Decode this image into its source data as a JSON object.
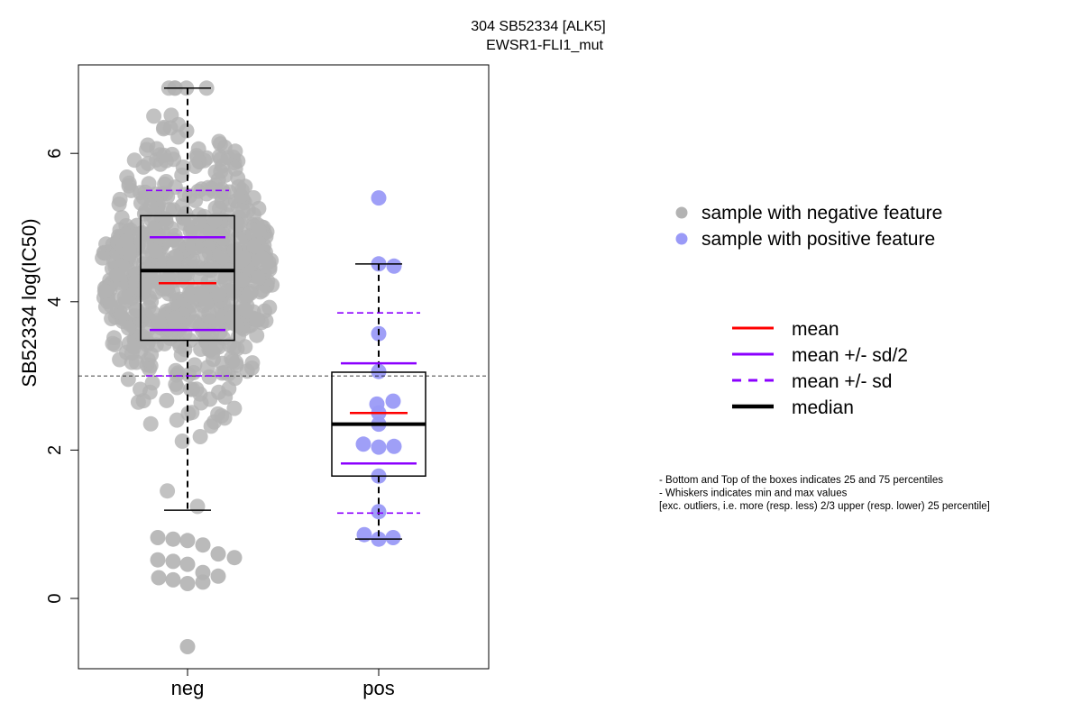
{
  "chart_data": {
    "type": "scatter",
    "title_line1": "304 SB52334 [ALK5]",
    "title_line2": "EWSR1-FLI1_mut",
    "ylabel": "SB52334 log(IC50)",
    "ylim": [
      -0.93,
      7.18
    ],
    "yticks": [
      "0",
      "2",
      "4",
      "6"
    ],
    "categories": [
      "neg",
      "pos"
    ],
    "reference_line_y": 3.0,
    "colors": {
      "neg_points": "#b3b3b3",
      "pos_points": "#9a9af7",
      "mean": "#ff0000",
      "sd": "#8b00ff",
      "median": "#000000"
    },
    "groups": [
      {
        "name": "neg",
        "n_points": 700,
        "whisker_min": 1.19,
        "q1": 3.48,
        "median": 4.42,
        "q3": 5.16,
        "whisker_max": 6.88,
        "mean": 4.25,
        "mean_plus_half_sd": 4.87,
        "mean_minus_half_sd": 3.62,
        "mean_plus_sd": 5.5,
        "mean_minus_sd": 3.0,
        "low_outliers": [
          0.82,
          0.8,
          0.78,
          0.72,
          0.6,
          0.55,
          0.52,
          0.5,
          0.46,
          0.35,
          0.3,
          0.28,
          0.25,
          0.2,
          0.22,
          -0.65
        ]
      },
      {
        "name": "pos",
        "whisker_min": 0.8,
        "q1": 1.65,
        "median": 2.35,
        "q3": 3.05,
        "whisker_max": 4.51,
        "mean": 2.5,
        "mean_plus_half_sd": 3.17,
        "mean_minus_half_sd": 1.82,
        "mean_plus_sd": 3.85,
        "mean_minus_sd": 1.15,
        "points": [
          5.4,
          4.51,
          4.48,
          3.57,
          3.06,
          2.66,
          2.62,
          2.5,
          2.35,
          2.08,
          2.04,
          2.05,
          1.65,
          1.17,
          0.86,
          0.82,
          0.8
        ]
      }
    ],
    "legend_points": [
      {
        "label": "sample with negative feature",
        "color": "#b3b3b3"
      },
      {
        "label": "sample with positive feature",
        "color": "#9a9af7"
      }
    ],
    "legend_lines": [
      {
        "label": "mean",
        "color": "#ff0000",
        "style": "solid",
        "weight": "normal"
      },
      {
        "label": "mean +/- sd/2",
        "color": "#8b00ff",
        "style": "solid",
        "weight": "normal"
      },
      {
        "label": "mean +/- sd",
        "color": "#8b00ff",
        "style": "dashed",
        "weight": "normal"
      },
      {
        "label": "median",
        "color": "#000000",
        "style": "solid",
        "weight": "thick"
      }
    ],
    "notes": [
      "- Bottom and Top of the boxes indicates 25 and 75 percentiles",
      "- Whiskers indicates min and max values",
      "[exc. outliers, i.e. more (resp. less) 2/3 upper (resp. lower) 25 percentile]"
    ]
  }
}
